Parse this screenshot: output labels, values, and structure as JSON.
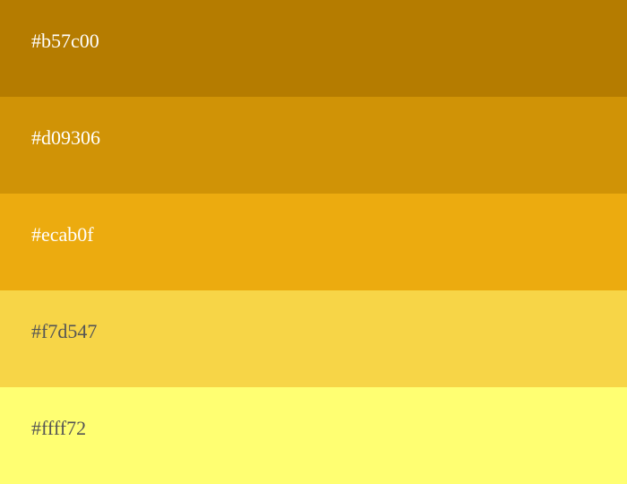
{
  "palette": {
    "swatches": [
      {
        "label": "#b57c00",
        "color": "#b57c00",
        "text_color": "#ffffff"
      },
      {
        "label": "#d09306",
        "color": "#d09306",
        "text_color": "#ffffff"
      },
      {
        "label": "#ecab0f",
        "color": "#ecab0f",
        "text_color": "#ffffff"
      },
      {
        "label": "#f7d547",
        "color": "#f7d547",
        "text_color": "#555555"
      },
      {
        "label": "#ffff72",
        "color": "#ffff72",
        "text_color": "#555555"
      }
    ]
  }
}
